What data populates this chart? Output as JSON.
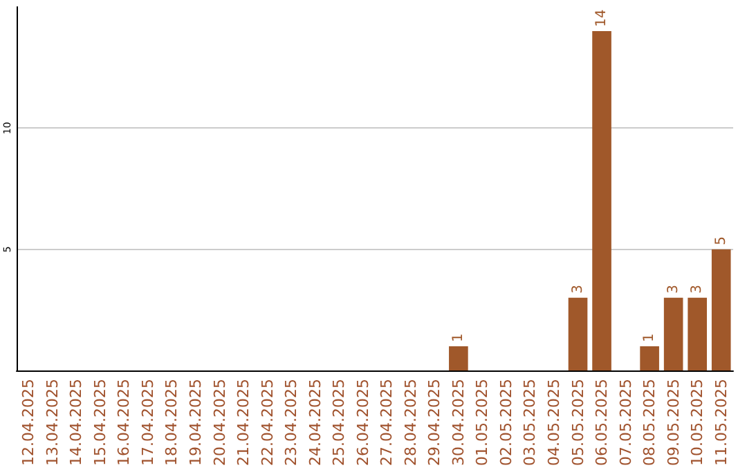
{
  "chart_data": {
    "type": "bar",
    "categories": [
      "12.04.2025",
      "13.04.2025",
      "14.04.2025",
      "15.04.2025",
      "16.04.2025",
      "17.04.2025",
      "18.04.2025",
      "19.04.2025",
      "20.04.2025",
      "21.04.2025",
      "22.04.2025",
      "23.04.2025",
      "24.04.2025",
      "25.04.2025",
      "26.04.2025",
      "27.04.2025",
      "28.04.2025",
      "29.04.2025",
      "30.04.2025",
      "01.05.2025",
      "02.05.2025",
      "03.05.2025",
      "04.05.2025",
      "05.05.2025",
      "06.05.2025",
      "07.05.2025",
      "08.05.2025",
      "09.05.2025",
      "10.05.2025",
      "11.05.2025"
    ],
    "values": [
      0,
      0,
      0,
      0,
      0,
      0,
      0,
      0,
      0,
      0,
      0,
      0,
      0,
      0,
      0,
      0,
      0,
      0,
      1,
      0,
      0,
      0,
      0,
      3,
      14,
      0,
      1,
      3,
      3,
      5
    ],
    "value_labels": [
      null,
      null,
      null,
      null,
      null,
      null,
      null,
      null,
      null,
      null,
      null,
      null,
      null,
      null,
      null,
      null,
      null,
      null,
      "1",
      null,
      null,
      null,
      null,
      "3",
      "14",
      null,
      "1",
      "3",
      "3",
      "5"
    ],
    "color": "#a0582a",
    "ylim": [
      0,
      15
    ],
    "yticks": [
      5,
      10
    ],
    "grid": "y"
  }
}
